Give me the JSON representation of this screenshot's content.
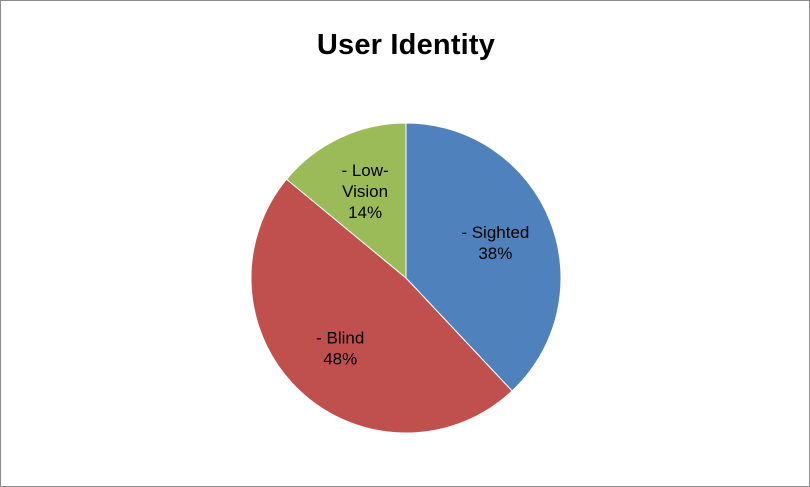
{
  "chart_data": {
    "type": "pie",
    "title": "User Identity",
    "start_angle_deg": 0,
    "direction": "clockwise",
    "slices": [
      {
        "label_lines": [
          "- Sighted",
          "38%"
        ],
        "value": 38,
        "color": "#4f81bd"
      },
      {
        "label_lines": [
          "- Blind",
          "48%"
        ],
        "value": 48,
        "color": "#c0504d"
      },
      {
        "label_lines": [
          "- Low-",
          "Vision",
          "14%"
        ],
        "value": 14,
        "color": "#9bbb59"
      }
    ],
    "legend": "none"
  }
}
